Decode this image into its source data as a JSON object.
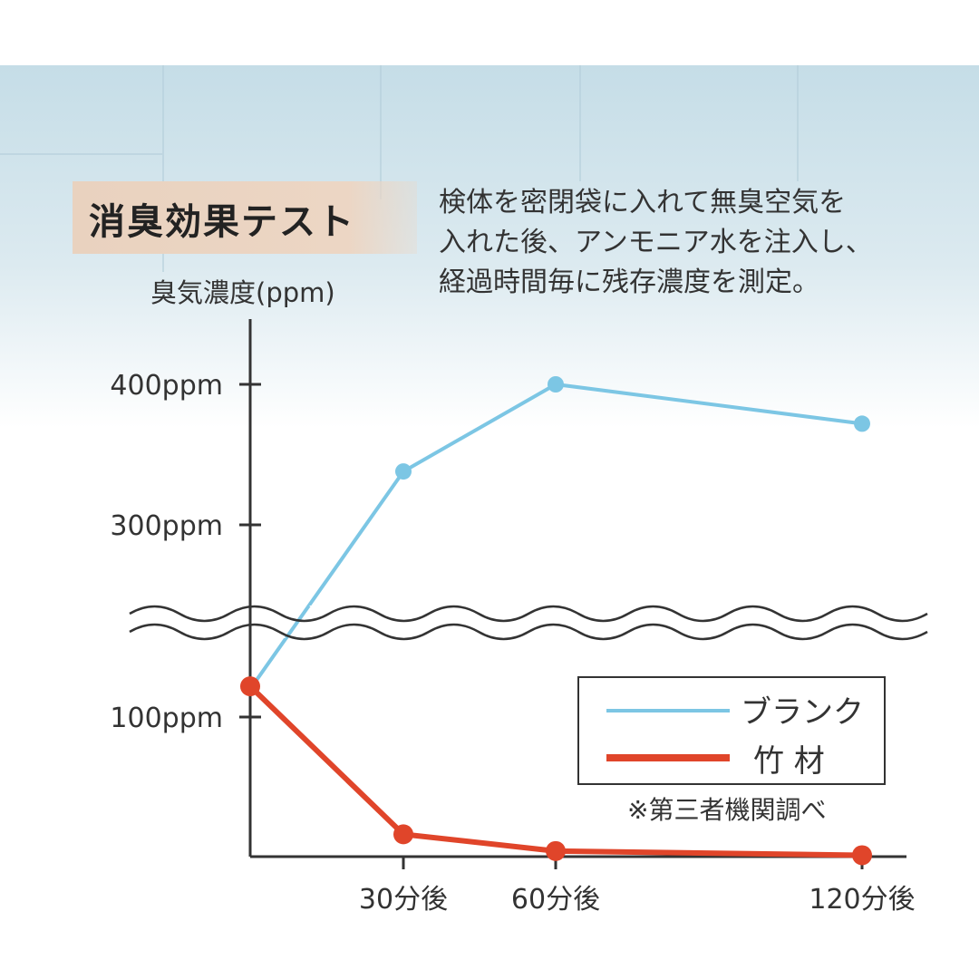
{
  "title": "消臭効果テスト",
  "description": [
    "検体を密閉袋に入れて無臭空気を",
    "入れた後、アンモニア水を注入し、",
    "経過時間毎に残存濃度を測定。"
  ],
  "note": "※第三者機関調べ",
  "colors": {
    "blank": "#7cc6e4",
    "bamboo": "#e0452a",
    "axis": "#333333",
    "bg_top": "#c9e1ea"
  },
  "chart_data": {
    "type": "line",
    "ylabel": "臭気濃度(ppm)",
    "xlabel": "",
    "x_ticks": [
      "30分後",
      "60分後",
      "120分後"
    ],
    "y_ticks": [
      "100ppm",
      "300ppm",
      "400ppm"
    ],
    "axis_break": "between 100ppm and 300ppm",
    "legend_position": "center-right",
    "series": [
      {
        "name": "ブランク",
        "color": "#7cc6e4",
        "points": [
          {
            "x": "0分",
            "y": 120
          },
          {
            "x": "30分後",
            "y": 338
          },
          {
            "x": "60分後",
            "y": 400
          },
          {
            "x": "120分後",
            "y": 372
          }
        ]
      },
      {
        "name": "竹 材",
        "color": "#e0452a",
        "points": [
          {
            "x": "0分",
            "y": 122
          },
          {
            "x": "30分後",
            "y": 16
          },
          {
            "x": "60分後",
            "y": 4
          },
          {
            "x": "120分後",
            "y": 1
          }
        ]
      }
    ]
  }
}
